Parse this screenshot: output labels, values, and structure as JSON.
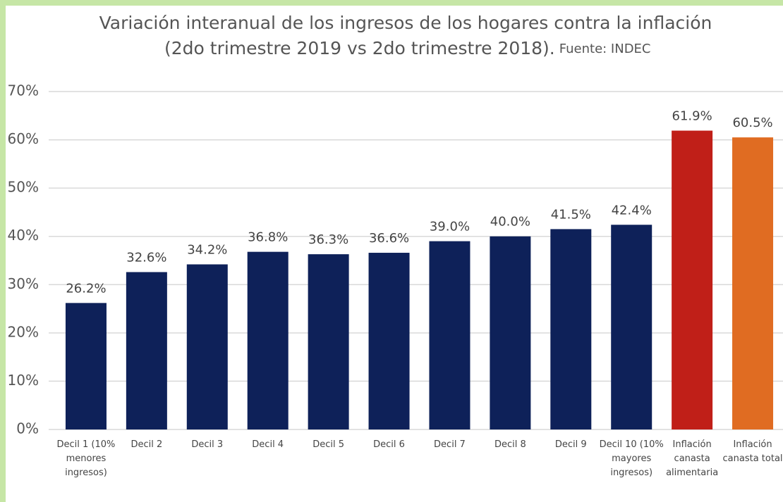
{
  "chart_data": {
    "type": "bar",
    "title": "Variación interanual de los ingresos de los hogares contra la inflación",
    "subtitle": "(2do trimestre 2019 vs 2do trimestre 2018).",
    "source": "Fuente: INDEC",
    "categories": [
      "Decil 1 (10% menores ingresos)",
      "Decil 2",
      "Decil 3",
      "Decil 4",
      "Decil 5",
      "Decil 6",
      "Decil 7",
      "Decil 8",
      "Decil 9",
      "Decil 10 (10% mayores ingresos)",
      "Inflación canasta alimentaria",
      "Inflación canasta total"
    ],
    "values": [
      26.2,
      32.6,
      34.2,
      36.8,
      36.3,
      36.6,
      39.0,
      40.0,
      41.5,
      42.4,
      61.9,
      60.5
    ],
    "value_labels": [
      "26.2%",
      "32.6%",
      "34.2%",
      "36.8%",
      "36.3%",
      "36.6%",
      "39.0%",
      "40.0%",
      "41.5%",
      "42.4%",
      "61.9%",
      "60.5%"
    ],
    "colors": [
      "#0e2159",
      "#0e2159",
      "#0e2159",
      "#0e2159",
      "#0e2159",
      "#0e2159",
      "#0e2159",
      "#0e2159",
      "#0e2159",
      "#0e2159",
      "#c01f18",
      "#e06c22"
    ],
    "ylim": [
      0,
      70
    ],
    "yticks": [
      {
        "value": 0,
        "label": "0%"
      },
      {
        "value": 10,
        "label": "10%"
      },
      {
        "value": 20,
        "label": "20%"
      },
      {
        "value": 30,
        "label": "30%"
      },
      {
        "value": 40,
        "label": "40%"
      },
      {
        "value": 50,
        "label": "50%"
      },
      {
        "value": 60,
        "label": "60%"
      },
      {
        "value": 70,
        "label": "70%"
      }
    ],
    "grid": true
  }
}
